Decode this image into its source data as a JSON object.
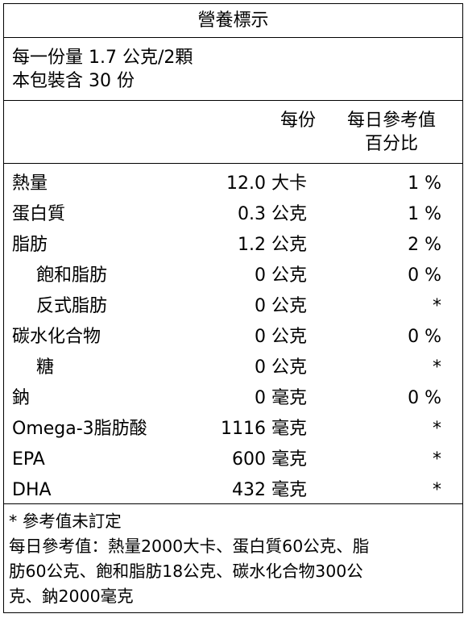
{
  "title": "營養標示",
  "serving": {
    "per_serving": "每一份量 1.7 公克/2顆",
    "servings_per_pack": "本包裝含 30 份"
  },
  "header": {
    "per_serving": "每份",
    "dv_line1": "每日參考值",
    "dv_line2": "百分比"
  },
  "rows": [
    {
      "name": "熱量",
      "amount": "12.0",
      "unit": "大卡",
      "dv": "1 %"
    },
    {
      "name": "蛋白質",
      "amount": "0.3",
      "unit": "公克",
      "dv": "1 %"
    },
    {
      "name": "脂肪",
      "amount": "1.2",
      "unit": "公克",
      "dv": "2 %"
    },
    {
      "name": "飽和脂肪",
      "amount": "0",
      "unit": "公克",
      "dv": "0 %"
    },
    {
      "name": "反式脂肪",
      "amount": "0",
      "unit": "公克",
      "dv": "*"
    },
    {
      "name": "碳水化合物",
      "amount": "0",
      "unit": "公克",
      "dv": "0 %"
    },
    {
      "name": "糖",
      "amount": "0",
      "unit": "公克",
      "dv": "*"
    },
    {
      "name": "鈉",
      "amount": "0",
      "unit": "毫克",
      "dv": "0 %"
    },
    {
      "name": "Omega-3脂肪酸",
      "amount": "1116",
      "unit": "毫克",
      "dv": "*"
    },
    {
      "name": "EPA",
      "amount": "600",
      "unit": "毫克",
      "dv": "*"
    },
    {
      "name": "DHA",
      "amount": "432",
      "unit": "毫克",
      "dv": "*"
    }
  ],
  "footnote": {
    "asterisk_note": "* 參考值未訂定",
    "reference_line1": "每日參考值：熱量2000大卡、蛋白質60公克、脂",
    "reference_line2": "肪60公克、飽和脂肪18公克、碳水化合物300公",
    "reference_line3": "克、鈉2000毫克"
  }
}
